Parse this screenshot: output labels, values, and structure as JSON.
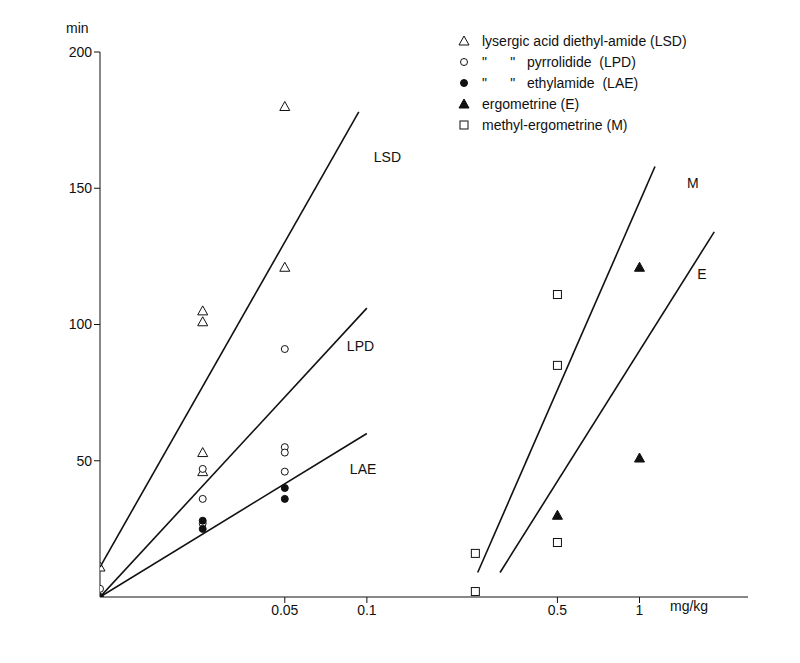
{
  "chart_data": {
    "type": "scatter",
    "x_label": "mg/kg",
    "y_label": "min",
    "log": "x",
    "xlim": [
      0.0105,
      2.5
    ],
    "xticks": [
      0.05,
      0.1,
      0.5,
      1
    ],
    "ylim": [
      0,
      200
    ],
    "yticks": [
      50,
      100,
      150,
      200
    ],
    "grid": false,
    "legend": "top-right",
    "series": [
      {
        "name": "lysergic acid diethyl-amide (LSD)",
        "type": "scatter",
        "marker": "triangle-open",
        "color": "#111111",
        "x": [
          0.0105,
          0.025,
          0.025,
          0.025,
          0.025,
          0.05,
          0.05
        ],
        "values": [
          11,
          105,
          101,
          53,
          46,
          180,
          121
        ]
      },
      {
        "name": "\"      \"   pyrrolidide  (LPD)",
        "type": "scatter",
        "marker": "circle-open",
        "color": "#111111",
        "x": [
          0.0105,
          0.025,
          0.025,
          0.025,
          0.05,
          0.05,
          0.05,
          0.05
        ],
        "values": [
          3,
          47,
          36,
          27,
          91,
          55,
          53,
          46
        ]
      },
      {
        "name": "\"      \"   ethylamide  (LAE)",
        "type": "scatter",
        "marker": "circle-filled",
        "color": "#111111",
        "x": [
          0.0105,
          0.025,
          0.025,
          0.05,
          0.05
        ],
        "values": [
          0,
          28,
          25,
          40,
          36
        ]
      },
      {
        "name": "ergometrine (E)",
        "type": "scatter",
        "marker": "triangle-filled",
        "color": "#111111",
        "x": [
          0.5,
          1,
          1
        ],
        "values": [
          30,
          121,
          51
        ]
      },
      {
        "name": "methyl-ergometrine (M)",
        "type": "scatter",
        "marker": "square-open",
        "color": "#111111",
        "x": [
          0.25,
          0.25,
          0.5,
          0.5,
          0.5
        ],
        "values": [
          16,
          2,
          111,
          85,
          20
        ]
      },
      {
        "name": "LSD",
        "type": "line",
        "color": "#111111",
        "x": [
          0.0105,
          0.0934
        ],
        "values": [
          11,
          178
        ]
      },
      {
        "name": "LPD",
        "type": "line",
        "color": "#111111",
        "x": [
          0.0105,
          0.1
        ],
        "values": [
          0,
          106
        ]
      },
      {
        "name": "LAE",
        "type": "line",
        "color": "#111111",
        "x": [
          0.0105,
          0.1
        ],
        "values": [
          0,
          60
        ]
      },
      {
        "name": "M",
        "type": "line",
        "color": "#111111",
        "x": [
          0.255,
          1.14
        ],
        "values": [
          9,
          158
        ]
      },
      {
        "name": "E",
        "type": "line",
        "color": "#111111",
        "x": [
          0.308,
          1.88
        ],
        "values": [
          9,
          134
        ]
      }
    ]
  }
}
